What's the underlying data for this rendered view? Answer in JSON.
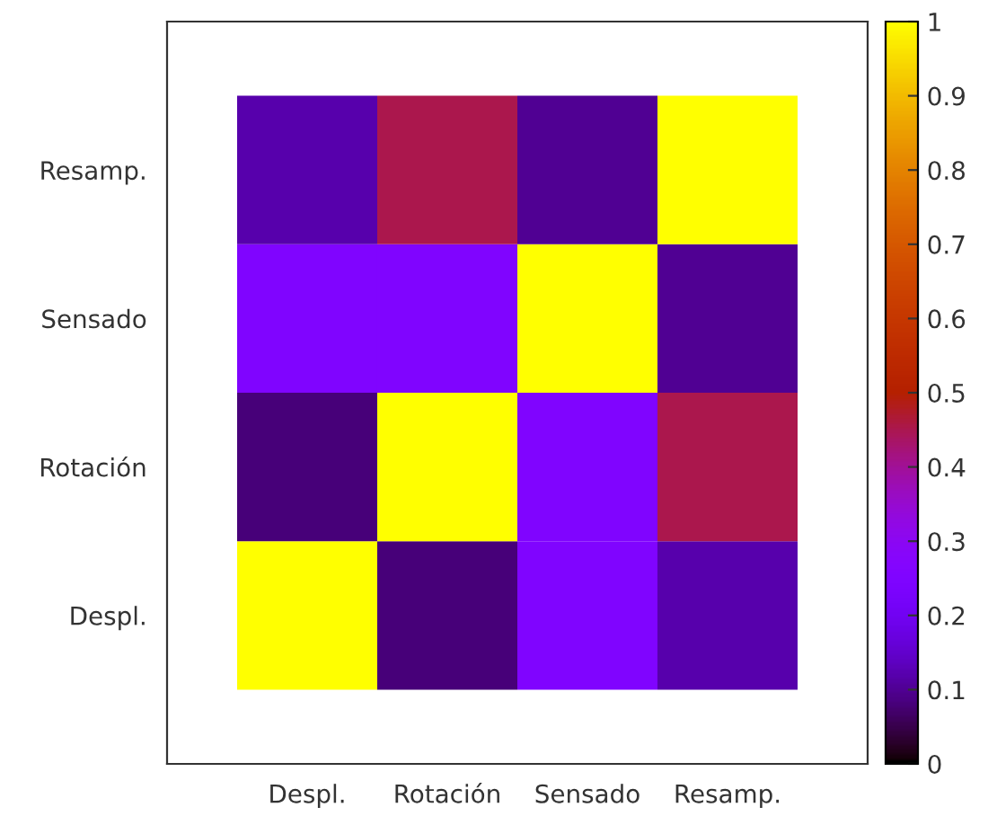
{
  "chart_data": {
    "type": "heatmap",
    "categories": [
      "Despl.",
      "Rotación",
      "Sensado",
      "Resamp."
    ],
    "y_categories": [
      "Resamp.",
      "Sensado",
      "Rotación",
      "Despl."
    ],
    "cells": [
      [
        0.12,
        0.45,
        0.1,
        1
      ],
      [
        0.25,
        0.25,
        1,
        0.1
      ],
      [
        0.08,
        1,
        0.25,
        0.45
      ],
      [
        1,
        0.08,
        0.25,
        0.12
      ]
    ],
    "clim": [
      0,
      1
    ],
    "cticks": [
      0,
      0.1,
      0.2,
      0.3,
      0.4,
      0.5,
      0.6,
      0.7,
      0.8,
      0.9,
      1
    ]
  }
}
